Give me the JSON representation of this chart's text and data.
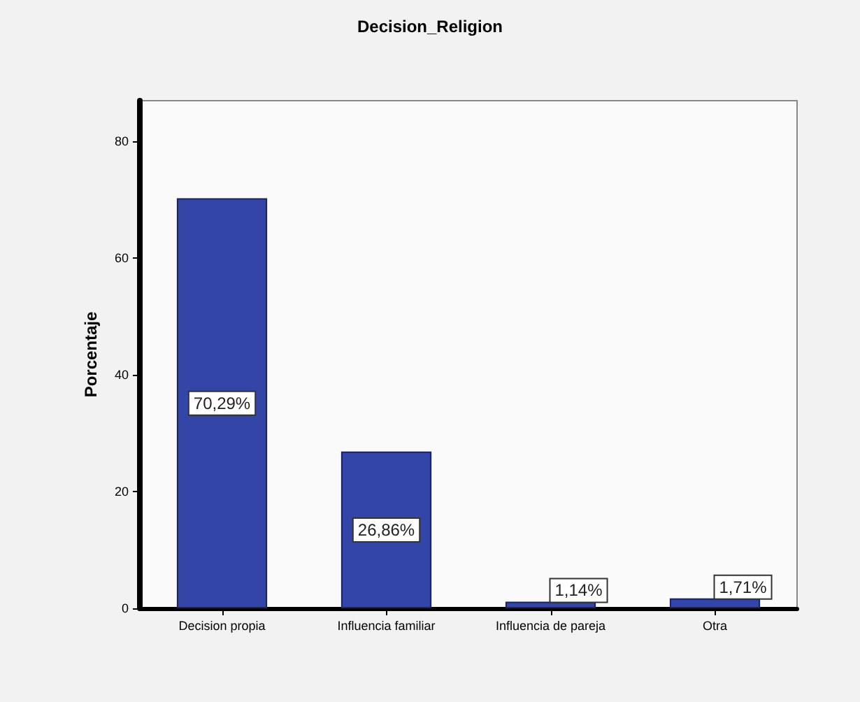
{
  "chart_data": {
    "type": "bar",
    "title": "Decision_Religion",
    "ylabel": "Porcentaje",
    "categories": [
      "Decision propia",
      "Influencia familiar",
      "Influencia de pareja",
      "Otra"
    ],
    "values": [
      70.29,
      26.86,
      1.14,
      1.71
    ],
    "value_labels": [
      "70,29%",
      "26,86%",
      "1,14%",
      "1,71%"
    ],
    "color": "#3346a8",
    "ylim": [
      0,
      87
    ],
    "yticks": [
      0,
      20,
      40,
      60,
      80
    ],
    "grid": false
  }
}
